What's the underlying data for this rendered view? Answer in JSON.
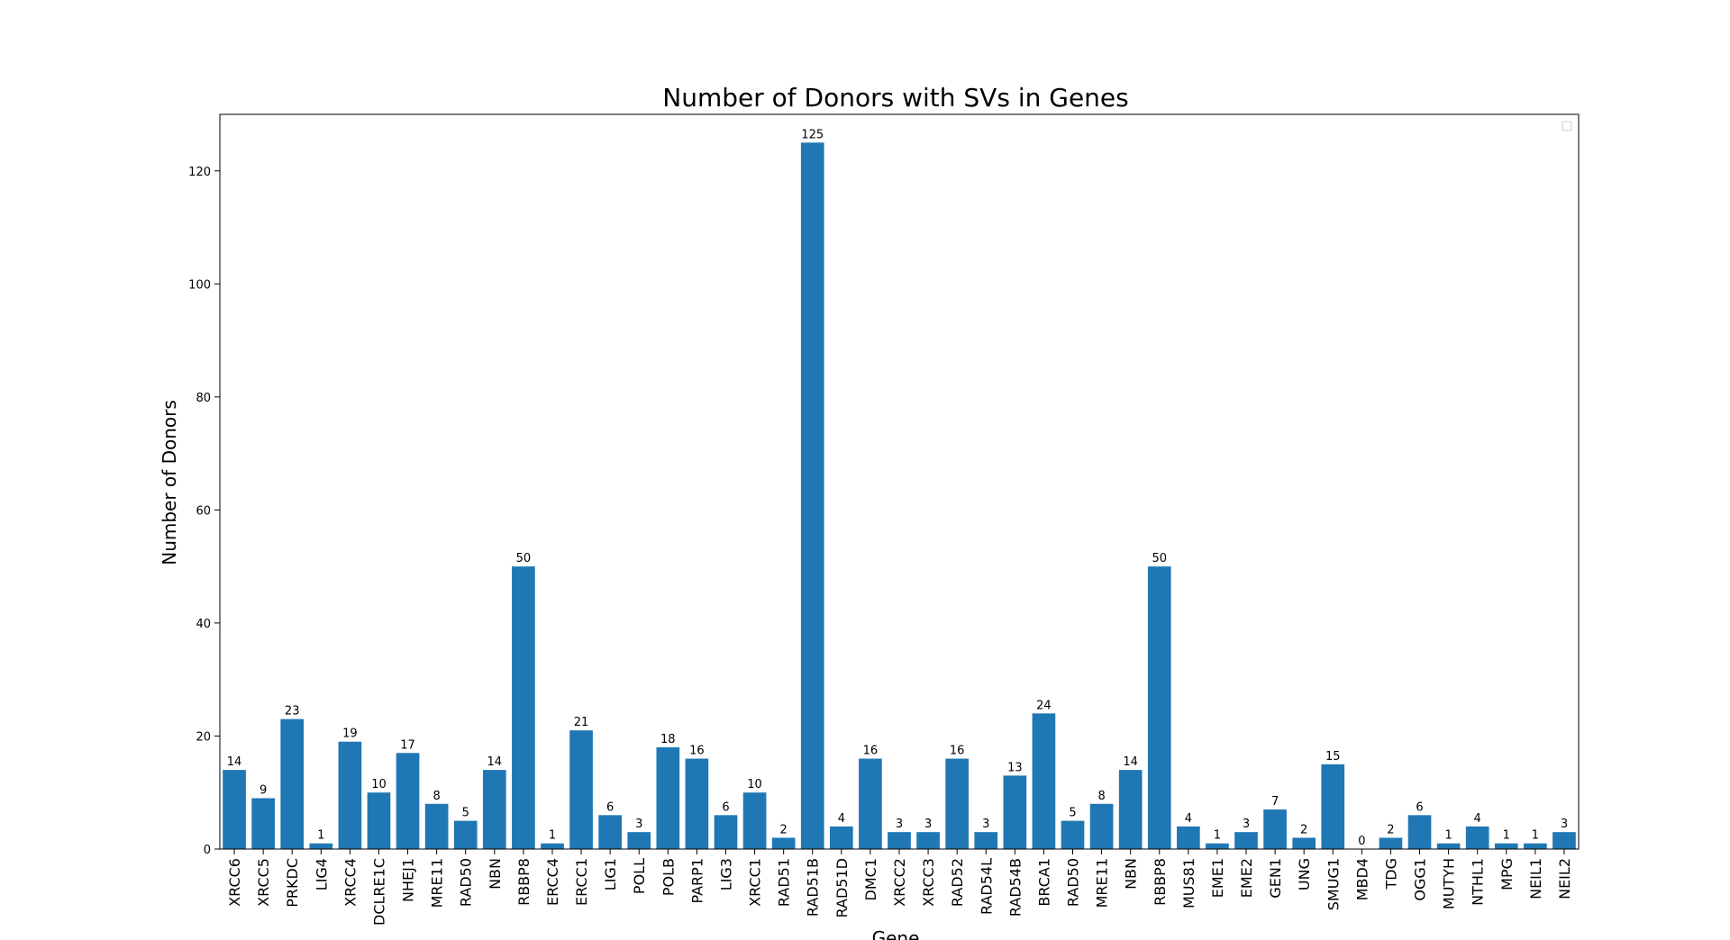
{
  "chart_data": {
    "type": "bar",
    "title": "Number of Donors with SVs in Genes",
    "xlabel": "Gene",
    "ylabel": "Number of Donors",
    "ylim": [
      0,
      130
    ],
    "yticks": [
      0,
      20,
      40,
      60,
      80,
      100,
      120
    ],
    "grid": false,
    "legend": "top-right (empty)",
    "bar_color": "#1f77b4",
    "categories": [
      "XRCC6",
      "XRCC5",
      "PRKDC",
      "LIG4",
      "XRCC4",
      "DCLRE1C",
      "NHEJ1",
      "MRE11",
      "RAD50",
      "NBN",
      "RBBP8",
      "ERCC4",
      "ERCC1",
      "LIG1",
      "POLL",
      "POLB",
      "PARP1",
      "LIG3",
      "XRCC1",
      "RAD51",
      "RAD51B",
      "RAD51D",
      "DMC1",
      "XRCC2",
      "XRCC3",
      "RAD52",
      "RAD54L",
      "RAD54B",
      "BRCA1",
      "RAD50",
      "MRE11",
      "NBN",
      "RBBP8",
      "MUS81",
      "EME1",
      "EME2",
      "GEN1",
      "UNG",
      "SMUG1",
      "MBD4",
      "TDG",
      "OGG1",
      "MUTYH",
      "NTHL1",
      "MPG",
      "NEIL1",
      "NEIL2"
    ],
    "values": [
      14,
      9,
      23,
      1,
      19,
      10,
      17,
      8,
      5,
      14,
      50,
      1,
      21,
      6,
      3,
      18,
      16,
      6,
      10,
      2,
      125,
      4,
      16,
      3,
      3,
      16,
      3,
      13,
      24,
      5,
      8,
      14,
      50,
      4,
      1,
      3,
      7,
      2,
      15,
      0,
      2,
      6,
      1,
      4,
      1,
      1,
      3
    ]
  }
}
